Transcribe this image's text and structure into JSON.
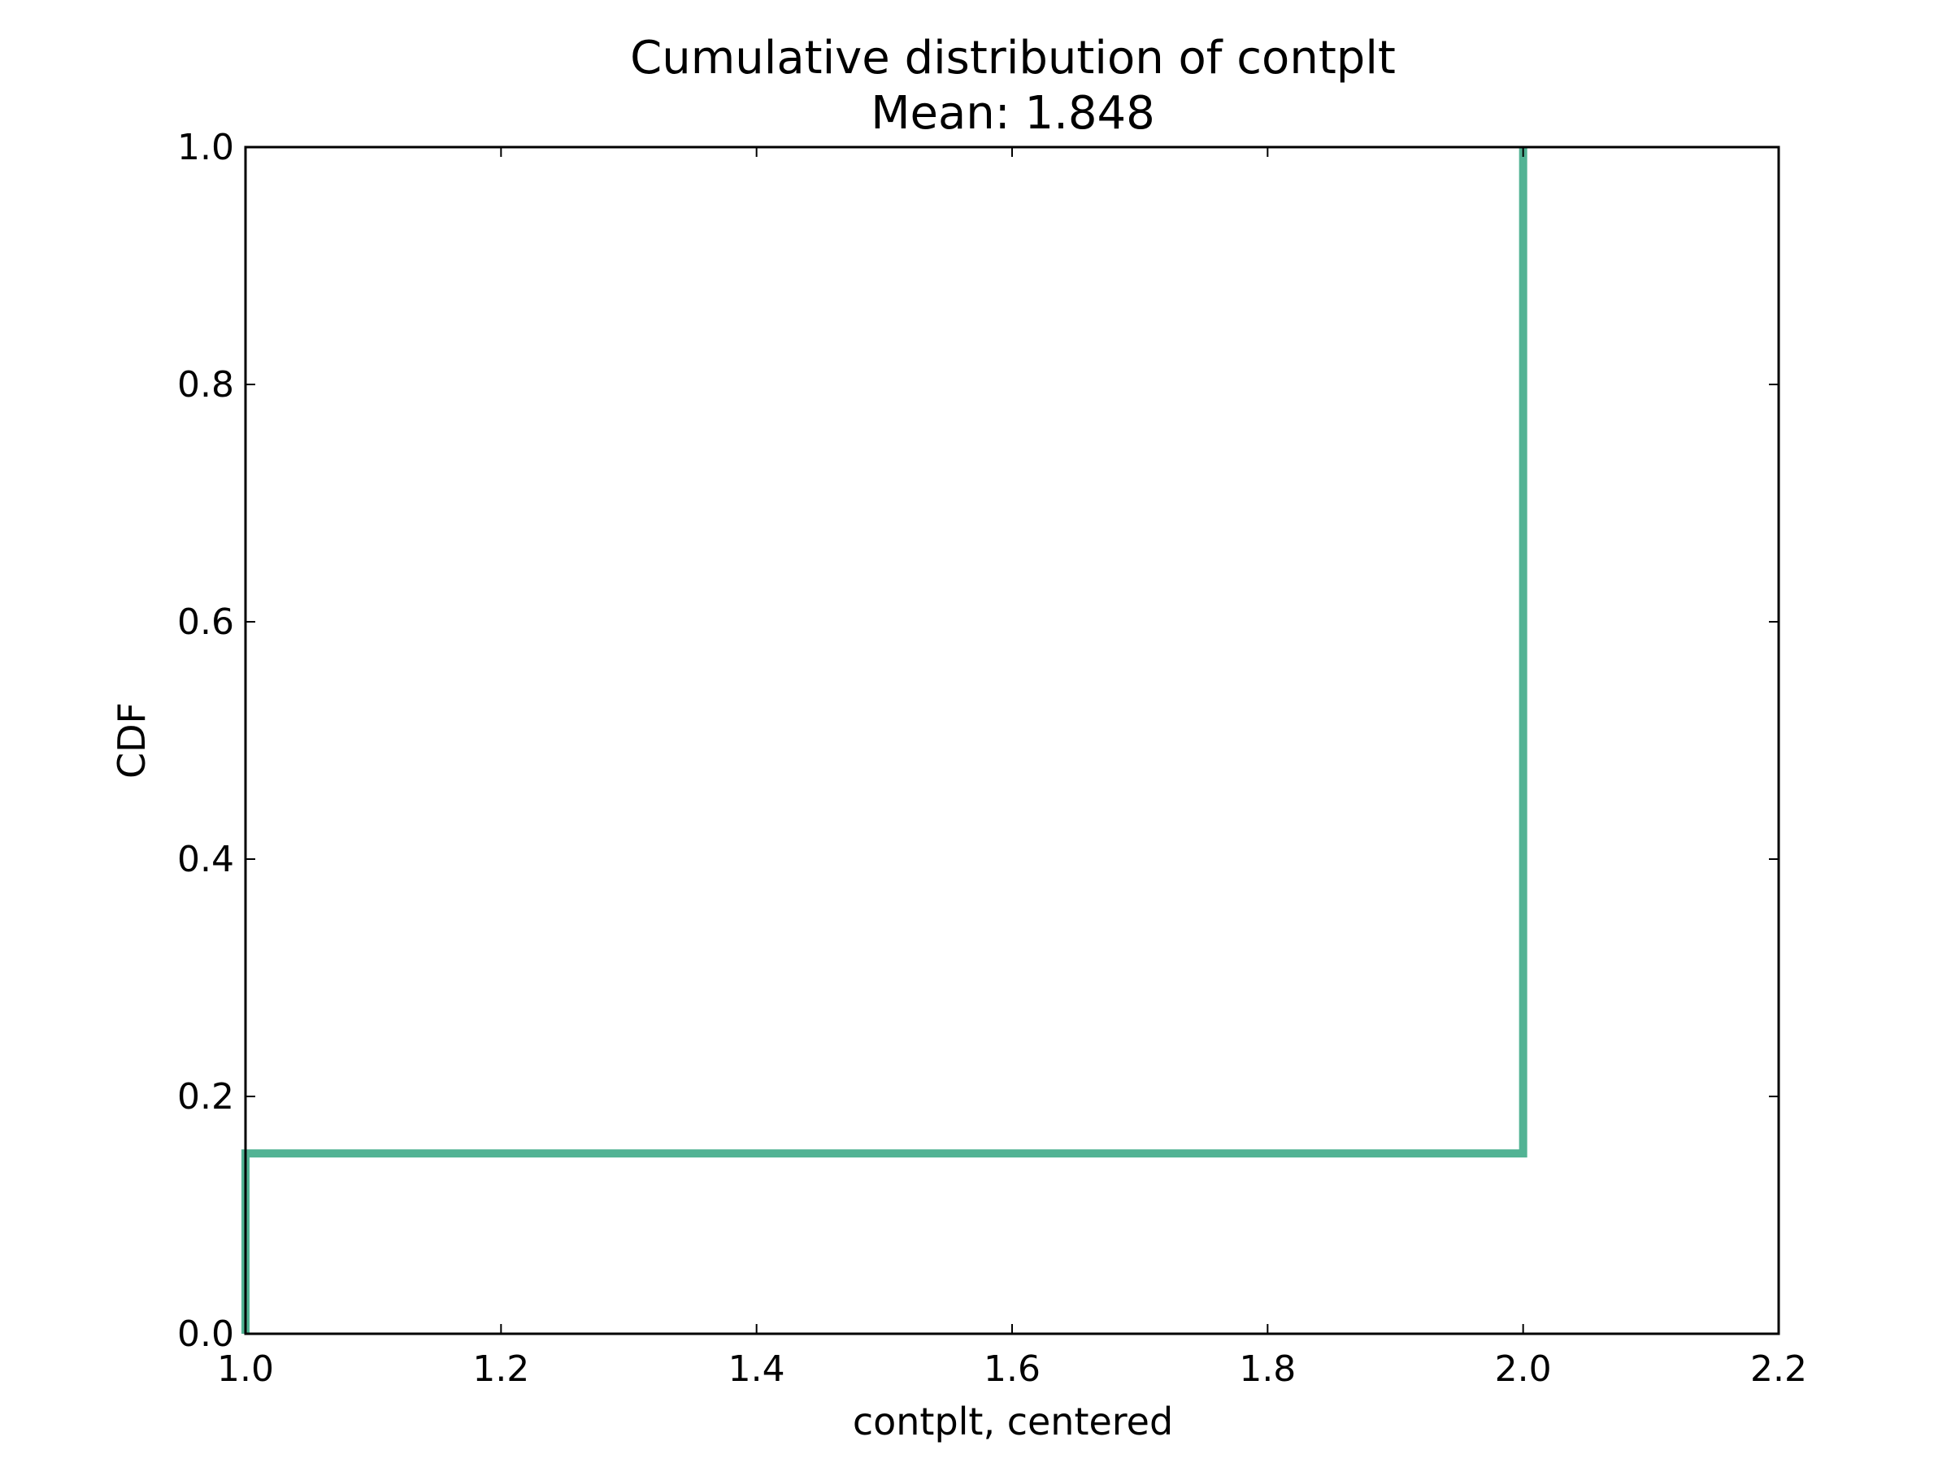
{
  "chart_data": {
    "type": "line",
    "title": "Cumulative distribution of contplt",
    "subtitle": "Mean: 1.848",
    "xlabel": "contplt, centered",
    "ylabel": "CDF",
    "xlim": [
      1.0,
      2.2
    ],
    "ylim": [
      0.0,
      1.0
    ],
    "xticks": [
      "1.0",
      "1.2",
      "1.4",
      "1.6",
      "1.8",
      "2.0",
      "2.2"
    ],
    "yticks": [
      "0.0",
      "0.2",
      "0.4",
      "0.6",
      "0.8",
      "1.0"
    ],
    "grid": false,
    "step": true,
    "series": [
      {
        "color": "#52b394",
        "x": [
          1.0,
          1.0,
          2.0,
          2.0
        ],
        "y": [
          0.0,
          0.152,
          0.152,
          1.0
        ]
      }
    ]
  }
}
